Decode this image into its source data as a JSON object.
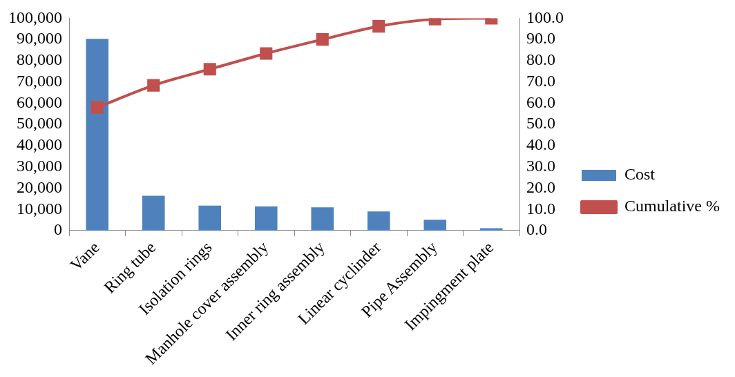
{
  "chart_data": {
    "type": "bar",
    "categories": [
      "Vane",
      "Ring tube",
      "Isolation rings",
      "Manhole cover assembly",
      "Inner ring assembly",
      "Linear cyclinder",
      "Pipe Assembly",
      "Impingment plate"
    ],
    "series": [
      {
        "name": "Cost",
        "color": "#4f81bd",
        "values": [
          90300,
          16400,
          11800,
          11400,
          11000,
          9000,
          5100,
          1100
        ]
      },
      {
        "name": "Cumulative %",
        "type": "line",
        "axis": "y2",
        "color": "#c0504d",
        "marker": "square",
        "values": [
          58.0,
          68.4,
          76.0,
          83.4,
          90.0,
          96.2,
          99.6,
          100
        ]
      }
    ],
    "ylim": [
      0,
      100000
    ],
    "yticks": [
      0,
      {
        "value": 10000,
        "label": "10,000"
      },
      {
        "value": 20000,
        "label": "20,000"
      },
      {
        "value": 30000,
        "label": "30,000"
      },
      {
        "value": 40000,
        "label": "40,000"
      },
      {
        "value": 50000,
        "label": "50,000"
      },
      {
        "value": 60000,
        "label": "60,000"
      },
      {
        "value": 70000,
        "label": "70,000"
      },
      {
        "value": 80000,
        "label": "80,000"
      },
      {
        "value": 90000,
        "label": "90,000"
      },
      {
        "value": 100000,
        "label": "100,000"
      }
    ],
    "y2lim": [
      0,
      100
    ],
    "y2ticks": [
      {
        "value": 0,
        "label": "0.0"
      },
      {
        "value": 10,
        "label": "10.0"
      },
      {
        "value": 20,
        "label": "20.0"
      },
      {
        "value": 30,
        "label": "30.0"
      },
      {
        "value": 40,
        "label": "40.0"
      },
      {
        "value": 50,
        "label": "50.0"
      },
      {
        "value": 60,
        "label": "60.0"
      },
      {
        "value": 70,
        "label": "70.0"
      },
      {
        "value": 80,
        "label": "80.0"
      },
      {
        "value": 90,
        "label": "90.0"
      },
      {
        "value": 100,
        "label": "100.0"
      }
    ],
    "grid": false,
    "legend": "right"
  }
}
